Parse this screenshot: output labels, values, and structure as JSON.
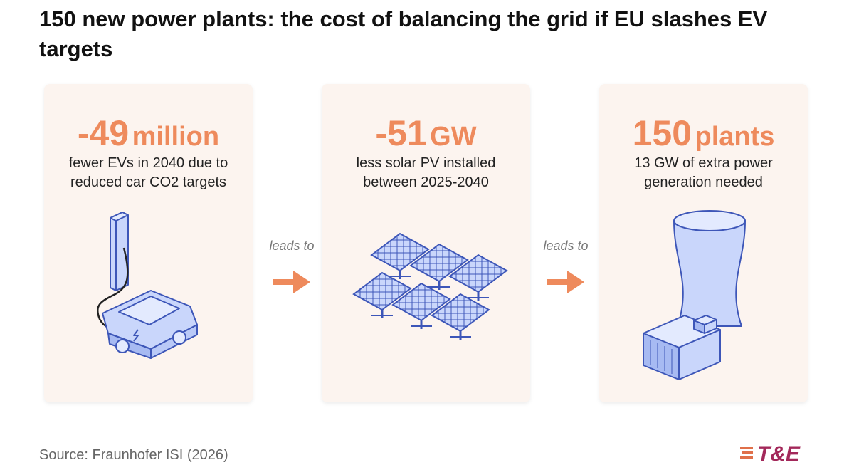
{
  "header": {
    "title": "150 new power plants: the cost of balancing the grid if EU slashes EV targets"
  },
  "cards": [
    {
      "value": "-49",
      "unit": "million",
      "description": [
        "fewer EVs in 2040 due to",
        "reduced car CO2 targets"
      ]
    },
    {
      "value": "-51",
      "unit": "GW",
      "description": [
        "less solar PV installed",
        "between 2025-2040"
      ]
    },
    {
      "value": "150",
      "unit": "plants",
      "description": [
        "13 GW of extra power",
        "generation needed"
      ]
    }
  ],
  "connectors": [
    "leads to",
    "leads to"
  ],
  "footer": {
    "source": "Source: Fraunhofer ISI (2026)",
    "logo": "T&E"
  }
}
